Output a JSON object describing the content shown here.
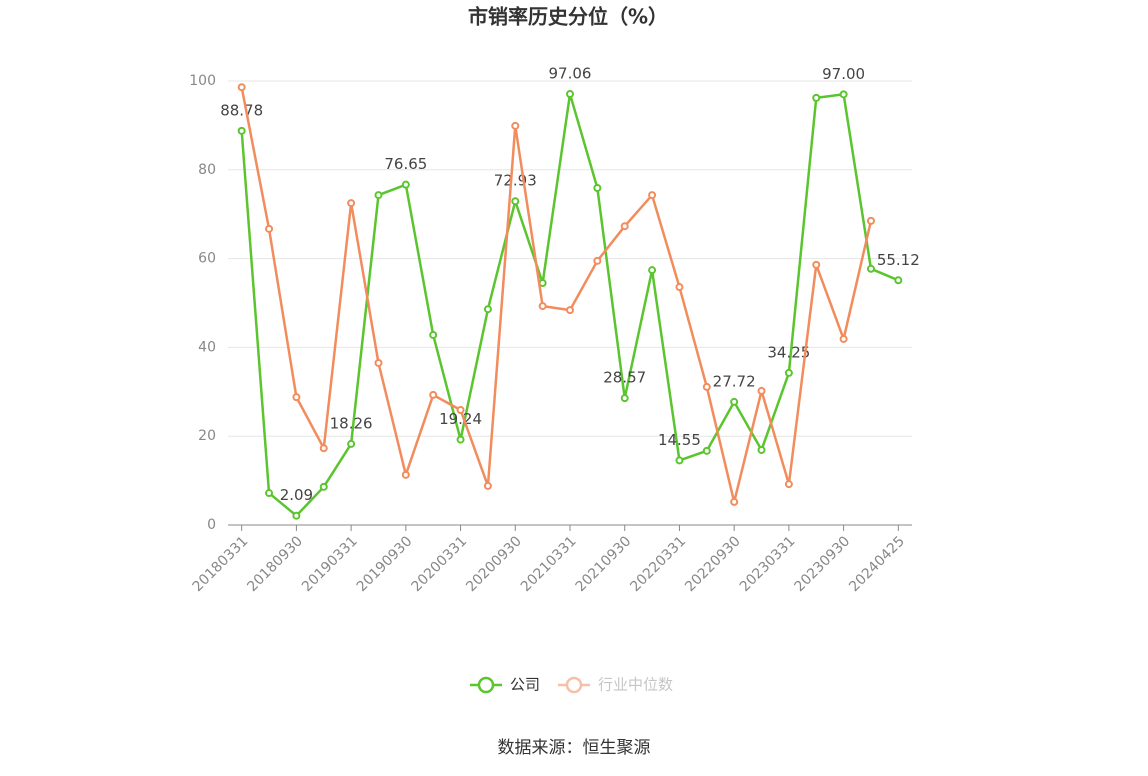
{
  "chart_data": {
    "type": "line",
    "title": "市销率历史分位（%）",
    "categories": [
      "20180331",
      null,
      "20180930",
      null,
      "20190331",
      null,
      "20190930",
      null,
      "20200331",
      null,
      "20200930",
      null,
      "20210331",
      null,
      "20210930",
      null,
      "20220331",
      null,
      "20220930",
      null,
      "20230331",
      null,
      "20230930",
      null,
      "20240425"
    ],
    "series": [
      {
        "name": "公司",
        "color": "#5ac52e",
        "values": [
          88.78,
          7.2,
          2.09,
          8.6,
          18.26,
          74.3,
          76.65,
          42.8,
          19.24,
          48.6,
          72.93,
          54.5,
          97.06,
          75.9,
          28.57,
          57.4,
          14.55,
          16.7,
          27.72,
          16.9,
          34.25,
          96.2,
          97.0,
          57.7,
          55.12
        ],
        "value_labels": [
          "88.78",
          null,
          "2.09",
          null,
          "18.26",
          null,
          "76.65",
          null,
          "19.24",
          null,
          "72.93",
          null,
          "97.06",
          null,
          "28.57",
          null,
          "14.55",
          null,
          "27.72",
          null,
          "34.25",
          null,
          "97.00",
          null,
          "55.12"
        ]
      },
      {
        "name": "行业中位数",
        "color": "#f28c5c",
        "values": [
          98.6,
          66.7,
          28.8,
          17.3,
          72.5,
          36.5,
          11.3,
          29.3,
          25.9,
          8.8,
          89.9,
          49.3,
          48.4,
          59.5,
          67.3,
          74.3,
          53.6,
          31.1,
          5.2,
          30.2,
          9.2,
          58.6,
          41.9,
          68.5,
          null
        ]
      }
    ],
    "ylim": [
      0,
      100
    ],
    "yticks": [
      0,
      20,
      40,
      60,
      80,
      100
    ],
    "grid": true,
    "legend": "bottom",
    "source": "数据来源：恒生聚源"
  }
}
